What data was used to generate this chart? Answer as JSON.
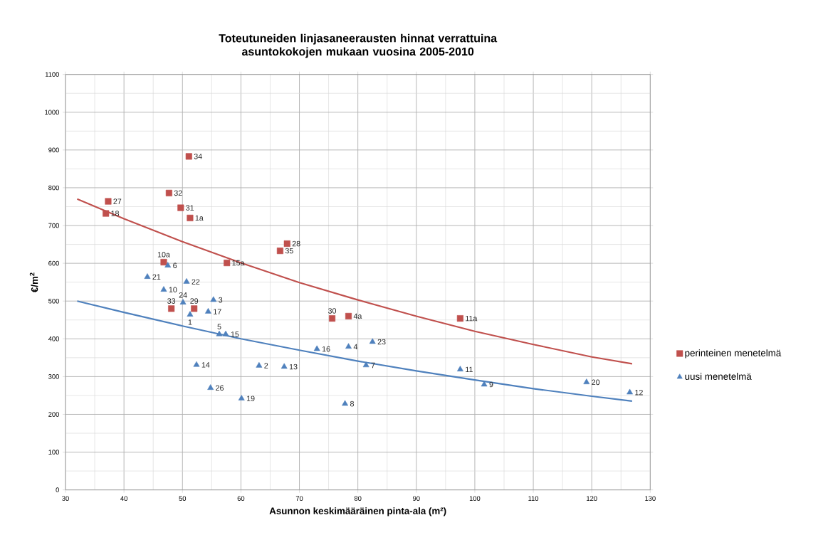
{
  "chart_data": {
    "type": "scatter",
    "title": "Toteutuneiden linjasaneerausten hinnat verrattuina asuntokokojen mukaan vuosina 2005-2010",
    "xlabel": "Asunnon keskimääräinen pinta-ala (m²)",
    "ylabel": "€/m$^{2}$",
    "xlim": [
      30,
      130
    ],
    "xticks": [
      30,
      40,
      50,
      60,
      70,
      80,
      90,
      100,
      110,
      120,
      130
    ],
    "ylim": [
      0,
      1100
    ],
    "yticks": [
      0,
      100,
      200,
      300,
      400,
      500,
      600,
      700,
      800,
      900,
      1000,
      1100
    ],
    "grid": true,
    "legend": "right",
    "series": [
      {
        "name": "perinteinen menetelmä",
        "color": "#c0504d",
        "marker": "square",
        "x": [
          51.1,
          47.7,
          37.3,
          36.9,
          49.7,
          51.3,
          46.8,
          57.6,
          48.1,
          52.0,
          67.9,
          66.7,
          75.6,
          78.4,
          97.5
        ],
        "values": [
          883,
          786,
          764,
          732,
          747,
          720,
          603,
          601,
          480,
          480,
          652,
          633,
          454,
          460,
          454
        ]
      },
      {
        "name": "uusi menetelmä",
        "color": "#4f81bd",
        "marker": "triangle",
        "x": [
          44.0,
          46.8,
          47.5,
          50.7,
          50.1,
          55.3,
          54.4,
          51.3,
          56.3,
          57.4,
          52.4,
          54.8,
          60.1,
          63.1,
          67.4,
          73.0,
          78.4,
          82.5,
          81.4,
          77.8,
          97.5,
          101.6,
          119.1,
          126.5
        ],
        "values": [
          564,
          530,
          594,
          551,
          496,
          503,
          472,
          464,
          412,
          412,
          331,
          270,
          242,
          329,
          326,
          373,
          379,
          392,
          330,
          228,
          319,
          279,
          285,
          258
        ]
      },
      {
        "type": "line",
        "color": "#c0504d",
        "marker": "none",
        "x": [
          32,
          40,
          50,
          60,
          70,
          80,
          90,
          100,
          110,
          120,
          126.9
        ],
        "values": [
          770,
          718,
          657,
          601,
          549,
          503,
          460,
          420,
          385,
          352,
          334
        ]
      },
      {
        "type": "line",
        "color": "#4f81bd",
        "marker": "none",
        "x": [
          32,
          40,
          50,
          60,
          70,
          80,
          90,
          100,
          110,
          120,
          126.9
        ],
        "values": [
          500,
          470,
          434,
          400,
          370,
          341,
          315,
          291,
          268,
          248,
          235
        ]
      }
    ],
    "annotations": [
      {
        "text": "34",
        "x": 51.1,
        "y": 883
      },
      {
        "text": "32",
        "x": 47.7,
        "y": 786
      },
      {
        "text": "27",
        "x": 37.3,
        "y": 764
      },
      {
        "text": "18",
        "x": 36.9,
        "y": 732
      },
      {
        "text": "31",
        "x": 49.7,
        "y": 747
      },
      {
        "text": "1a",
        "x": 51.3,
        "y": 720
      },
      {
        "text": "10a",
        "x": 46.8,
        "y": 603
      },
      {
        "text": "15a",
        "x": 57.6,
        "y": 601
      },
      {
        "text": "33",
        "x": 48.1,
        "y": 480
      },
      {
        "text": "29",
        "x": 52.0,
        "y": 480
      },
      {
        "text": "28",
        "x": 67.9,
        "y": 652
      },
      {
        "text": "35",
        "x": 66.7,
        "y": 633
      },
      {
        "text": "30",
        "x": 75.6,
        "y": 454
      },
      {
        "text": "4a",
        "x": 78.4,
        "y": 460
      },
      {
        "text": "11a",
        "x": 97.5,
        "y": 454
      },
      {
        "text": "21",
        "x": 44.0,
        "y": 564
      },
      {
        "text": "10",
        "x": 46.8,
        "y": 530
      },
      {
        "text": "6",
        "x": 47.5,
        "y": 594
      },
      {
        "text": "22",
        "x": 50.7,
        "y": 551
      },
      {
        "text": "24",
        "x": 50.1,
        "y": 496
      },
      {
        "text": "3",
        "x": 55.3,
        "y": 503
      },
      {
        "text": "17",
        "x": 54.4,
        "y": 472
      },
      {
        "text": "1",
        "x": 51.3,
        "y": 464
      },
      {
        "text": "5",
        "x": 56.3,
        "y": 412
      },
      {
        "text": "15",
        "x": 57.4,
        "y": 412
      },
      {
        "text": "14",
        "x": 52.4,
        "y": 331
      },
      {
        "text": "26",
        "x": 54.8,
        "y": 270
      },
      {
        "text": "19",
        "x": 60.1,
        "y": 242
      },
      {
        "text": "2",
        "x": 63.1,
        "y": 329
      },
      {
        "text": "13",
        "x": 67.4,
        "y": 326
      },
      {
        "text": "16",
        "x": 73.0,
        "y": 373
      },
      {
        "text": "4",
        "x": 78.4,
        "y": 379
      },
      {
        "text": "23",
        "x": 82.5,
        "y": 392
      },
      {
        "text": "7",
        "x": 81.4,
        "y": 330
      },
      {
        "text": "8",
        "x": 77.8,
        "y": 228
      },
      {
        "text": "11",
        "x": 97.5,
        "y": 319
      },
      {
        "text": "9",
        "x": 101.6,
        "y": 279
      },
      {
        "text": "20",
        "x": 119.1,
        "y": 285
      },
      {
        "text": "12",
        "x": 126.5,
        "y": 258
      }
    ]
  }
}
